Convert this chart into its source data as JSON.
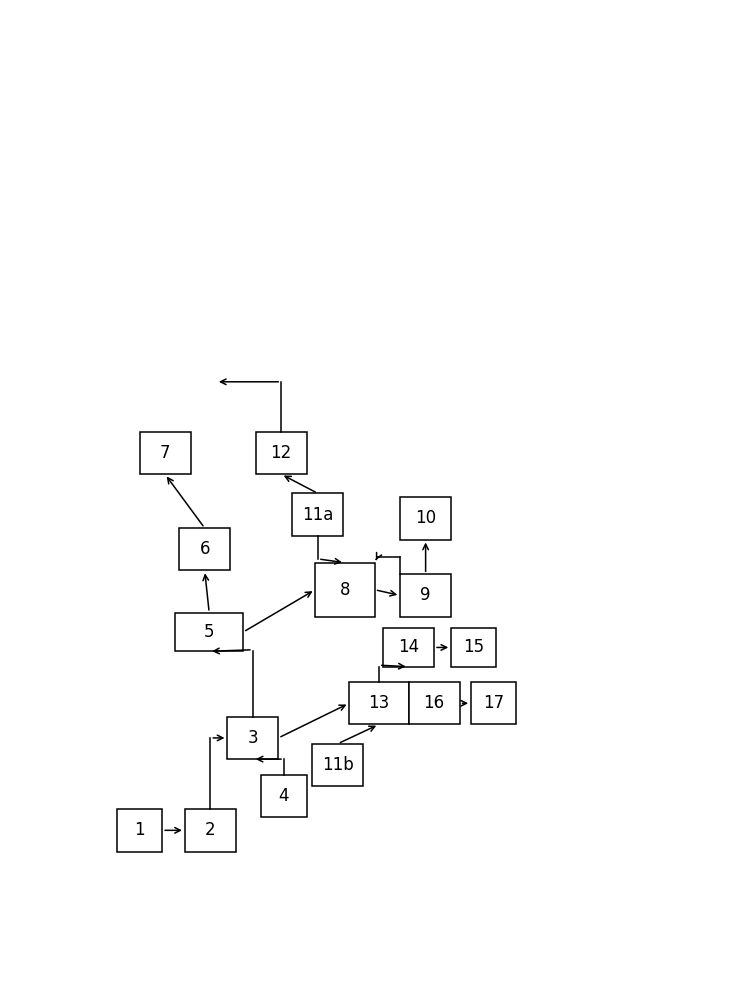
{
  "boxes": {
    "1": [
      0.045,
      0.05,
      0.08,
      0.055
    ],
    "2": [
      0.165,
      0.05,
      0.09,
      0.055
    ],
    "3": [
      0.24,
      0.17,
      0.09,
      0.055
    ],
    "4": [
      0.3,
      0.095,
      0.08,
      0.055
    ],
    "5": [
      0.148,
      0.31,
      0.12,
      0.05
    ],
    "6": [
      0.155,
      0.415,
      0.09,
      0.055
    ],
    "7": [
      0.085,
      0.54,
      0.09,
      0.055
    ],
    "8": [
      0.395,
      0.355,
      0.105,
      0.07
    ],
    "9": [
      0.545,
      0.355,
      0.09,
      0.055
    ],
    "10": [
      0.545,
      0.455,
      0.09,
      0.055
    ],
    "11a": [
      0.355,
      0.46,
      0.09,
      0.055
    ],
    "11b": [
      0.39,
      0.135,
      0.09,
      0.055
    ],
    "12": [
      0.29,
      0.54,
      0.09,
      0.055
    ],
    "13": [
      0.455,
      0.215,
      0.105,
      0.055
    ],
    "14": [
      0.515,
      0.29,
      0.09,
      0.05
    ],
    "15": [
      0.635,
      0.29,
      0.08,
      0.05
    ],
    "16": [
      0.56,
      0.215,
      0.09,
      0.055
    ],
    "17": [
      0.67,
      0.215,
      0.08,
      0.055
    ]
  },
  "bg_color": "#ffffff",
  "box_edgecolor": "#000000",
  "box_facecolor": "#ffffff",
  "arrow_color": "#000000",
  "fontsize": 12
}
